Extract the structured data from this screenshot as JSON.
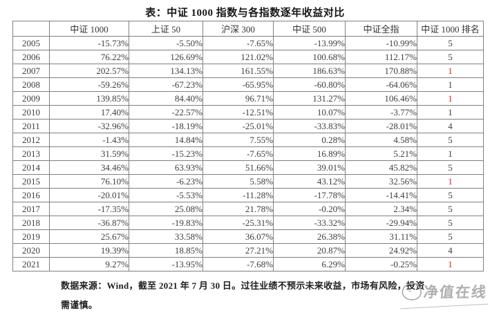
{
  "title": "表：中证 1000 指数与各指数逐年收益对比",
  "table": {
    "columns": [
      "",
      "中证 1000",
      "上证 50",
      "沪深 300",
      "中证 500",
      "中证全指",
      "中证 1000 排名"
    ],
    "grid_color": "#7f7f7f",
    "rank_red_color": "#e02222",
    "rows": [
      {
        "year": "2005",
        "values": [
          "-15.73%",
          "-5.50%",
          "-7.65%",
          "-13.99%",
          "-10.99%"
        ],
        "rank": "1_5",
        "rank_display": "5",
        "rank_red": false
      },
      {
        "year": "2006",
        "values": [
          "76.22%",
          "126.69%",
          "121.02%",
          "100.68%",
          "112.17%"
        ],
        "rank": "5",
        "rank_display": "5",
        "rank_red": false
      },
      {
        "year": "2007",
        "values": [
          "202.57%",
          "134.13%",
          "161.55%",
          "186.63%",
          "170.88%"
        ],
        "rank": "1",
        "rank_display": "1",
        "rank_red": true
      },
      {
        "year": "2008",
        "values": [
          "-59.26%",
          "-67.23%",
          "-65.95%",
          "-60.80%",
          "-64.06%"
        ],
        "rank": "1",
        "rank_display": "1",
        "rank_red": false
      },
      {
        "year": "2009",
        "values": [
          "139.85%",
          "84.40%",
          "96.71%",
          "131.27%",
          "106.46%"
        ],
        "rank": "1",
        "rank_display": "1",
        "rank_red": true
      },
      {
        "year": "2010",
        "values": [
          "17.40%",
          "-22.57%",
          "-12.51%",
          "10.07%",
          "-3.77%"
        ],
        "rank": "1",
        "rank_display": "1",
        "rank_red": false
      },
      {
        "year": "2011",
        "values": [
          "-32.96%",
          "-18.19%",
          "-25.01%",
          "-33.83%",
          "-28.01%"
        ],
        "rank": "4",
        "rank_display": "4",
        "rank_red": false
      },
      {
        "year": "2012",
        "values": [
          "-1.43%",
          "14.84%",
          "7.55%",
          "0.28%",
          "4.58%"
        ],
        "rank": "5",
        "rank_display": "5",
        "rank_red": false
      },
      {
        "year": "2013",
        "values": [
          "31.59%",
          "-15.23%",
          "-7.65%",
          "16.89%",
          "5.21%"
        ],
        "rank": "1",
        "rank_display": "1",
        "rank_red": false
      },
      {
        "year": "2014",
        "values": [
          "34.46%",
          "63.93%",
          "51.66%",
          "39.01%",
          "45.82%"
        ],
        "rank": "5",
        "rank_display": "5",
        "rank_red": false
      },
      {
        "year": "2015",
        "values": [
          "76.10%",
          "-6.23%",
          "5.58%",
          "43.12%",
          "32.56%"
        ],
        "rank": "1",
        "rank_display": "1",
        "rank_red": true
      },
      {
        "year": "2016",
        "values": [
          "-20.01%",
          "-5.53%",
          "-11.28%",
          "-17.78%",
          "-14.41%"
        ],
        "rank": "5",
        "rank_display": "5",
        "rank_red": false
      },
      {
        "year": "2017",
        "values": [
          "-17.35%",
          "25.08%",
          "21.78%",
          "-0.20%",
          "2.34%"
        ],
        "rank": "5",
        "rank_display": "5",
        "rank_red": false
      },
      {
        "year": "2018",
        "values": [
          "-36.87%",
          "-19.83%",
          "-25.31%",
          "-33.32%",
          "-29.94%"
        ],
        "rank": "5",
        "rank_display": "5",
        "rank_red": false
      },
      {
        "year": "2019",
        "values": [
          "25.67%",
          "33.58%",
          "36.07%",
          "26.38%",
          "31.11%"
        ],
        "rank": "5",
        "rank_display": "5",
        "rank_red": false
      },
      {
        "year": "2020",
        "values": [
          "19.39%",
          "18.85%",
          "27.21%",
          "20.87%",
          "24.92%"
        ],
        "rank": "4",
        "rank_display": "4",
        "rank_red": false
      },
      {
        "year": "2021",
        "values": [
          "9.27%",
          "-13.95%",
          "-7.68%",
          "6.29%",
          "-0.25%"
        ],
        "rank": "1",
        "rank_display": "1",
        "rank_red": true
      }
    ]
  },
  "footer": {
    "line1": "数据来源：Wind，截至 2021 年 7 月 30 日。过往业绩不预示未来收益，市场有风险，投资",
    "line2": "需谨慎。"
  },
  "watermark": {
    "text": "净值在线",
    "icon": "sketch-circle-icon",
    "color": "#a0a0a0"
  }
}
